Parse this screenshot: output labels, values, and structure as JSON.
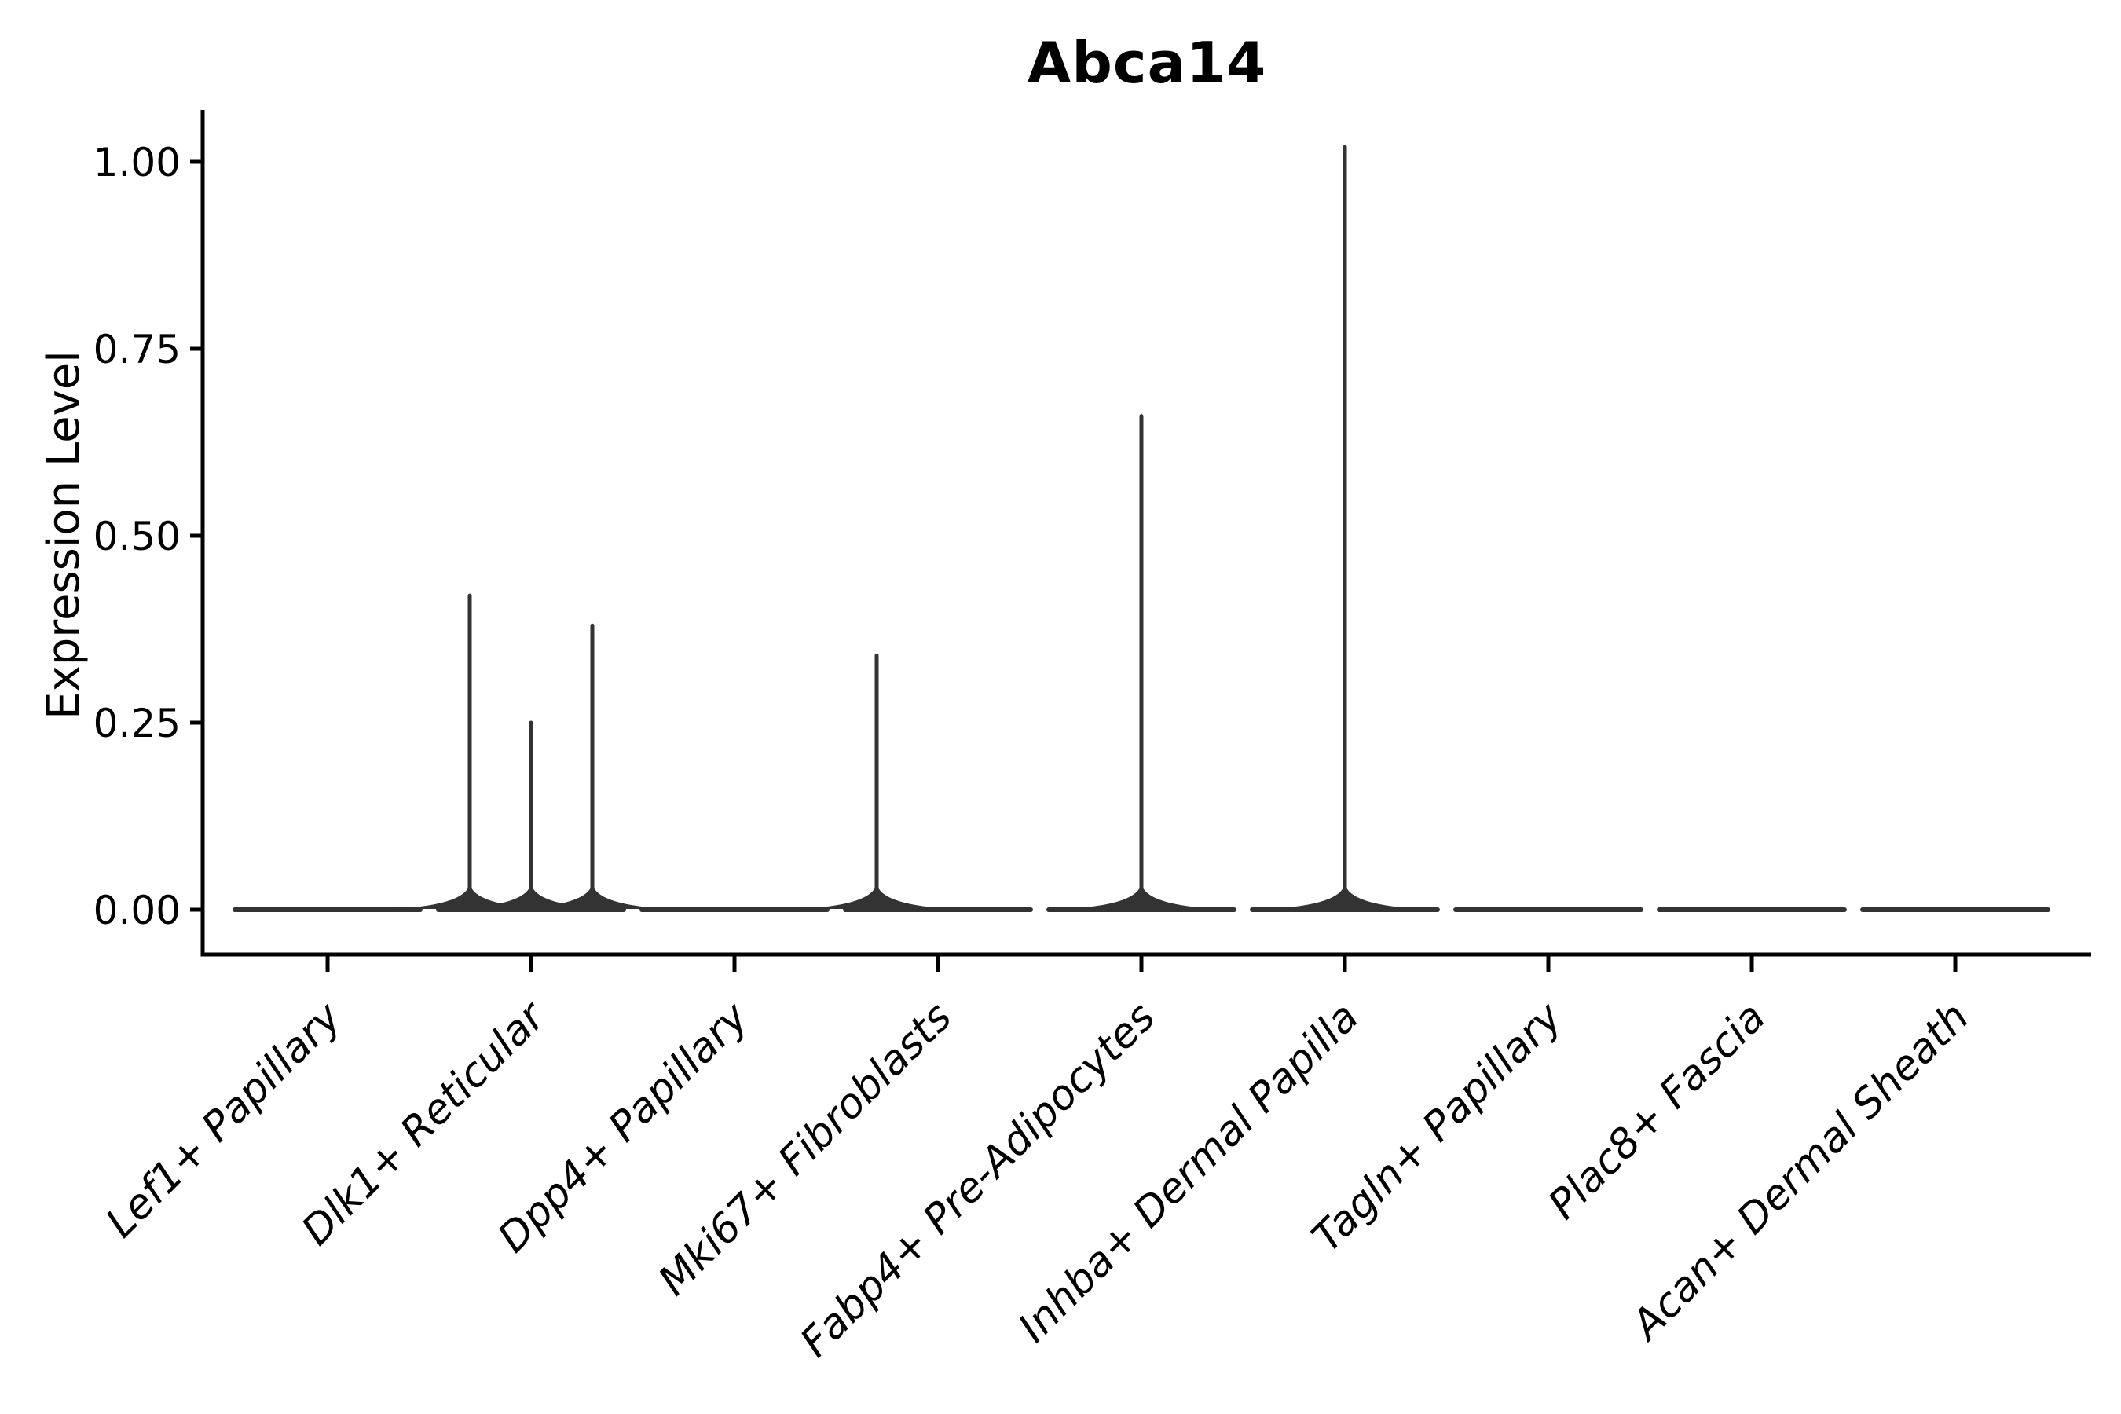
{
  "chart_data": {
    "type": "violin",
    "title": "Abca14",
    "ylabel": "Expression Level",
    "xlabel": "",
    "yticks": [
      {
        "value": 0.0,
        "label": "0.00"
      },
      {
        "value": 0.25,
        "label": "0.25"
      },
      {
        "value": 0.5,
        "label": "0.50"
      },
      {
        "value": 0.75,
        "label": "0.75"
      },
      {
        "value": 1.0,
        "label": "1.00"
      }
    ],
    "ylim": [
      0,
      1.06
    ],
    "grid": false,
    "legend": "none",
    "categories": [
      "Lef1+ Papillary",
      "Dlk1+ Reticular",
      "Dpp4+ Papillary",
      "Mki67+ Fibroblasts",
      "Fabp4+ Pre-Adipocytes",
      "Inhba+ Dermal Papilla",
      "Tagln+ Papillary",
      "Plac8+ Fascia",
      "Acan+ Dermal Sheath"
    ],
    "violins": [
      {
        "category": "Lef1+ Papillary",
        "baseline": 0,
        "spikes": []
      },
      {
        "category": "Dlk1+ Reticular",
        "baseline": 0,
        "spikes": [
          {
            "pos": "left",
            "max": 0.42
          },
          {
            "pos": "center",
            "max": 0.25
          },
          {
            "pos": "right",
            "max": 0.38
          }
        ]
      },
      {
        "category": "Dpp4+ Papillary",
        "baseline": 0,
        "spikes": []
      },
      {
        "category": "Mki67+ Fibroblasts",
        "baseline": 0,
        "spikes": [
          {
            "pos": "left",
            "max": 0.34
          }
        ]
      },
      {
        "category": "Fabp4+ Pre-Adipocytes",
        "baseline": 0,
        "spikes": [
          {
            "pos": "center",
            "max": 0.66
          }
        ]
      },
      {
        "category": "Inhba+ Dermal Papilla",
        "baseline": 0,
        "spikes": [
          {
            "pos": "center",
            "max": 1.02
          }
        ]
      },
      {
        "category": "Tagln+ Papillary",
        "baseline": 0,
        "spikes": []
      },
      {
        "category": "Plac8+ Fascia",
        "baseline": 0,
        "spikes": []
      },
      {
        "category": "Acan+ Dermal Sheath",
        "baseline": 0,
        "spikes": []
      }
    ],
    "colors": {
      "violin": "#333333",
      "axis": "#000000",
      "text": "#000000",
      "background": "#ffffff"
    }
  }
}
